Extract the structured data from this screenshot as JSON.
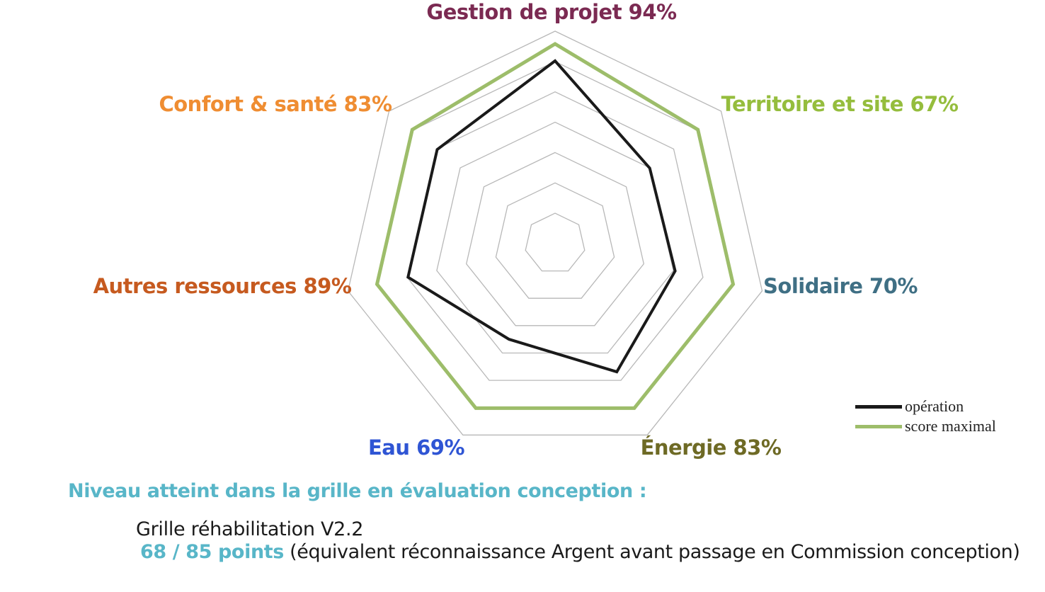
{
  "chart_data": {
    "type": "radar",
    "axes": [
      {
        "label": "Gestion de projet 94%",
        "color": "#7b2a52"
      },
      {
        "label": "Territoire et site 67%",
        "color": "#95bd3d"
      },
      {
        "label": "Solidaire 70%",
        "color": "#3f6f84"
      },
      {
        "label": "Énergie 83%",
        "color": "#6e6a25"
      },
      {
        "label": "Eau 69%",
        "color": "#2f55d4"
      },
      {
        "label": "Autres ressources 89%",
        "color": "#c65a1f"
      },
      {
        "label": "Confort & santé 83%",
        "color": "#ef8d32"
      }
    ],
    "rings": 7,
    "series": [
      {
        "name": "opération",
        "color": "#1a1a1a",
        "values": [
          0.86,
          0.57,
          0.58,
          0.67,
          0.5,
          0.71,
          0.71
        ]
      },
      {
        "name": "score maximal",
        "color": "#9dbd6a",
        "values": [
          0.94,
          0.86,
          0.86,
          0.86,
          0.86,
          0.86,
          0.86
        ]
      }
    ],
    "grid_color": "#b8b8b8"
  },
  "legend": {
    "items": [
      {
        "label": "opération",
        "color": "#1a1a1a"
      },
      {
        "label": "score maximal",
        "color": "#9dbd6a"
      }
    ]
  },
  "summary": {
    "heading": "Niveau atteint dans la grille en évaluation conception :",
    "grid_version": "Grille réhabilitation V2.2",
    "points": "68 / 85 points",
    "points_note": " (équivalent réconnaissance Argent avant passage en Commission conception)"
  }
}
